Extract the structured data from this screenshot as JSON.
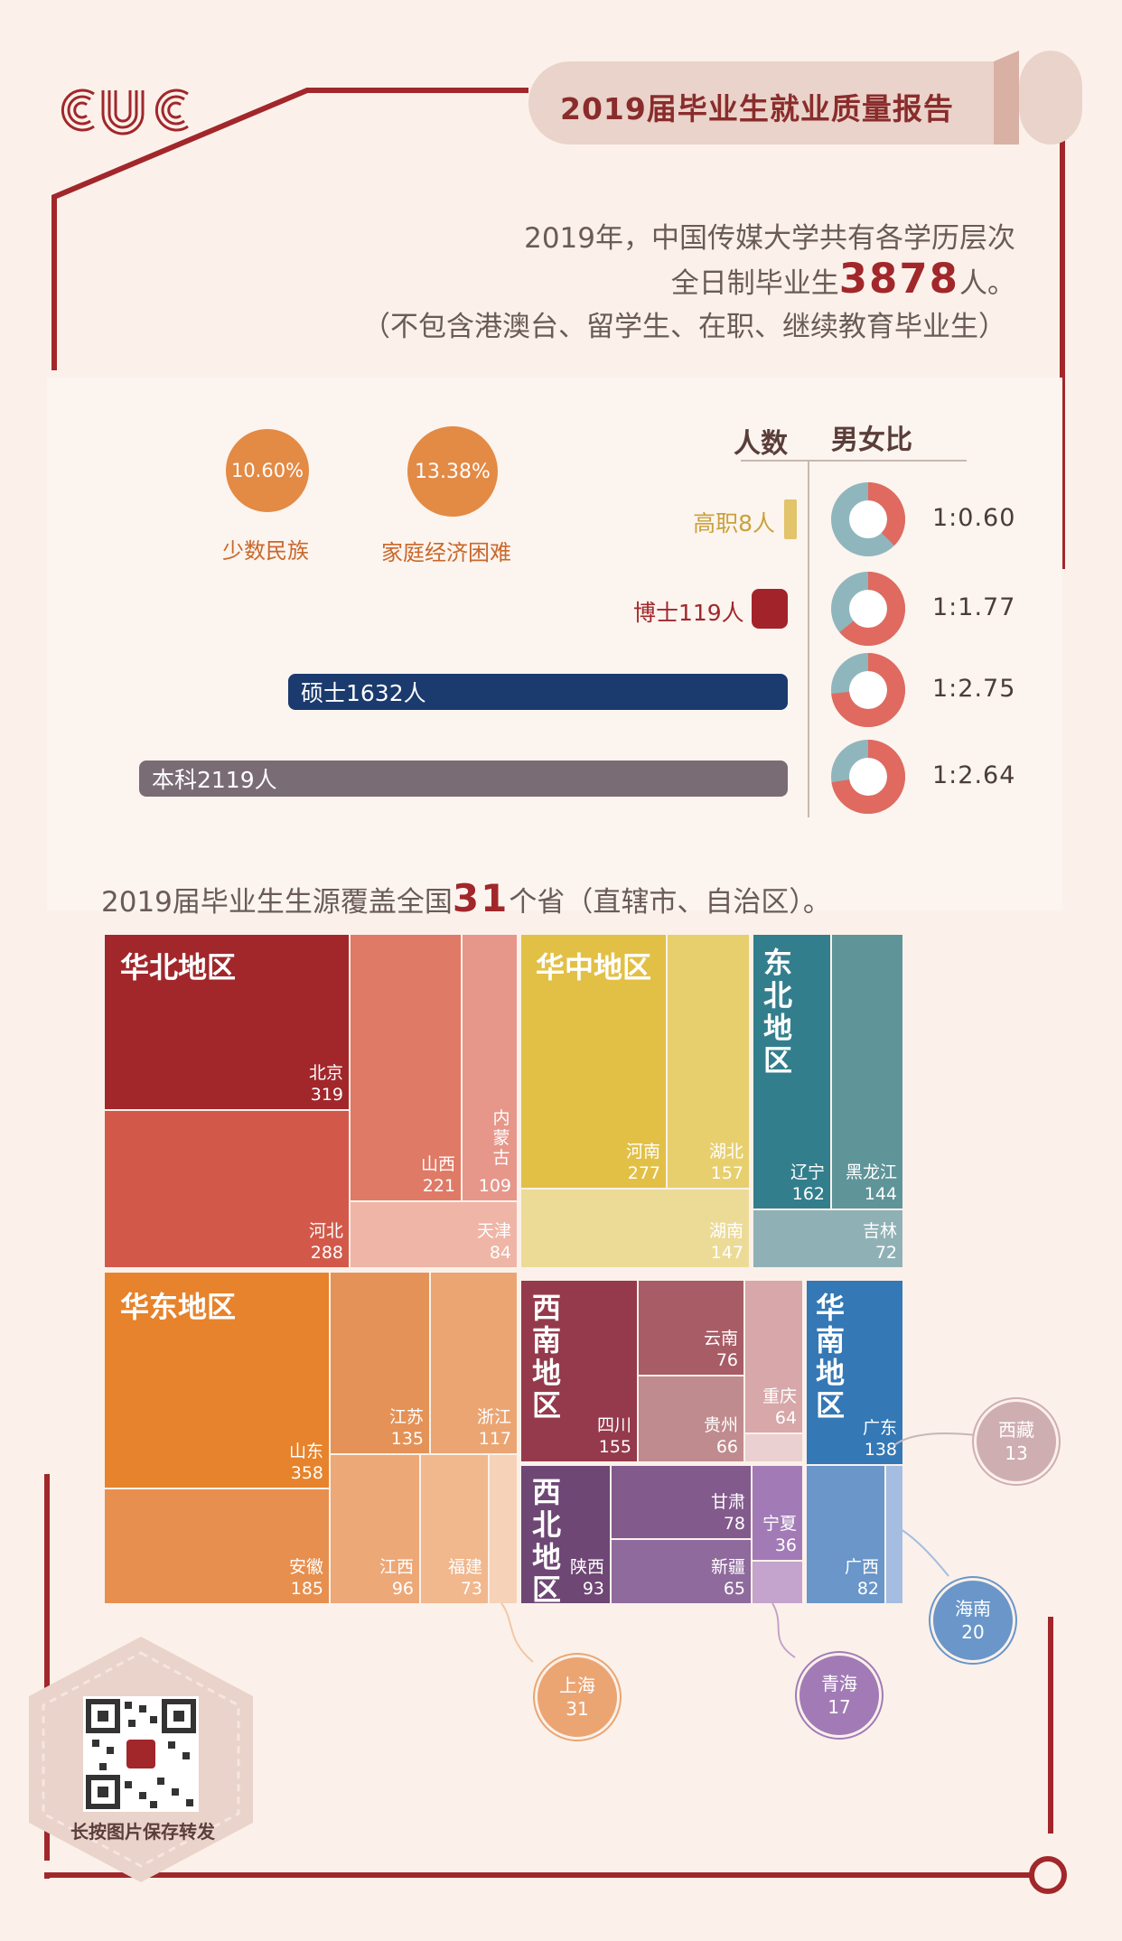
{
  "header": {
    "logo_text": "CUC",
    "title": "2019届毕业生就业质量报告"
  },
  "intro": {
    "line1": "2019年，中国传媒大学共有各学历层次",
    "line2_prefix": "全日制毕业生",
    "line2_number": "3878",
    "line2_suffix": "人。",
    "line3": "（不包含港澳台、留学生、在职、继续教育毕业生）"
  },
  "stats": [
    {
      "percent": "10.60%",
      "label": "少数民族"
    },
    {
      "percent": "13.38%",
      "label": "家庭经济困难"
    }
  ],
  "columns": {
    "count_header": "人数",
    "ratio_header": "男女比"
  },
  "chart_data": [
    {
      "type": "bar",
      "title": "",
      "categories": [
        "高职",
        "博士",
        "硕士",
        "本科"
      ],
      "labels": [
        "高职8人",
        "博士119人",
        "硕士1632人",
        "本科2119人"
      ],
      "values": [
        8,
        119,
        1632,
        2119
      ],
      "male_female_ratio": [
        "1:0.60",
        "1:1.77",
        "1:2.75",
        "1:2.64"
      ],
      "ratio_female_share": [
        0.375,
        0.639,
        0.733,
        0.725
      ],
      "colors": [
        "#e2c46a",
        "#a3232b",
        "#1b3a6e",
        "#7a6c74"
      ],
      "xlim": [
        0,
        2119
      ]
    },
    {
      "type": "treemap",
      "title": "2019届毕业生生源覆盖全国31个省（直辖市、自治区）。",
      "regions": [
        {
          "name": "华北地区",
          "provinces": [
            {
              "name": "北京",
              "value": 319
            },
            {
              "name": "河北",
              "value": 288
            },
            {
              "name": "山西",
              "value": 221
            },
            {
              "name": "内蒙古",
              "value": 109
            },
            {
              "name": "天津",
              "value": 84
            }
          ]
        },
        {
          "name": "华中地区",
          "provinces": [
            {
              "name": "河南",
              "value": 277
            },
            {
              "name": "湖北",
              "value": 157
            },
            {
              "name": "湖南",
              "value": 147
            }
          ]
        },
        {
          "name": "东北地区",
          "provinces": [
            {
              "name": "辽宁",
              "value": 162
            },
            {
              "name": "黑龙江",
              "value": 144
            },
            {
              "name": "吉林",
              "value": 72
            }
          ]
        },
        {
          "name": "华东地区",
          "provinces": [
            {
              "name": "山东",
              "value": 358
            },
            {
              "name": "安徽",
              "value": 185
            },
            {
              "name": "江苏",
              "value": 135
            },
            {
              "name": "浙江",
              "value": 117
            },
            {
              "name": "江西",
              "value": 96
            },
            {
              "name": "福建",
              "value": 73
            },
            {
              "name": "上海",
              "value": 31
            }
          ]
        },
        {
          "name": "西南地区",
          "provinces": [
            {
              "name": "四川",
              "value": 155
            },
            {
              "name": "云南",
              "value": 76
            },
            {
              "name": "贵州",
              "value": 66
            },
            {
              "name": "重庆",
              "value": 64
            },
            {
              "name": "西藏",
              "value": 13
            }
          ]
        },
        {
          "name": "华南地区",
          "provinces": [
            {
              "name": "广东",
              "value": 138
            },
            {
              "name": "广西",
              "value": 82
            },
            {
              "name": "海南",
              "value": 20
            }
          ]
        },
        {
          "name": "西北地区",
          "provinces": [
            {
              "name": "陕西",
              "value": 93
            },
            {
              "name": "甘肃",
              "value": 78
            },
            {
              "name": "新疆",
              "value": 65
            },
            {
              "name": "宁夏",
              "value": 36
            },
            {
              "name": "青海",
              "value": 17
            }
          ]
        }
      ]
    }
  ],
  "coverage": {
    "prefix": "2019届毕业生生源覆盖全国",
    "number": "31",
    "suffix": "个省（直辖市、自治区）。"
  },
  "footer": {
    "qr_caption": "长按图片保存转发"
  },
  "colors": {
    "accent": "#a1272b",
    "background": "#fbf1ea",
    "tab": "#ead3ca"
  }
}
